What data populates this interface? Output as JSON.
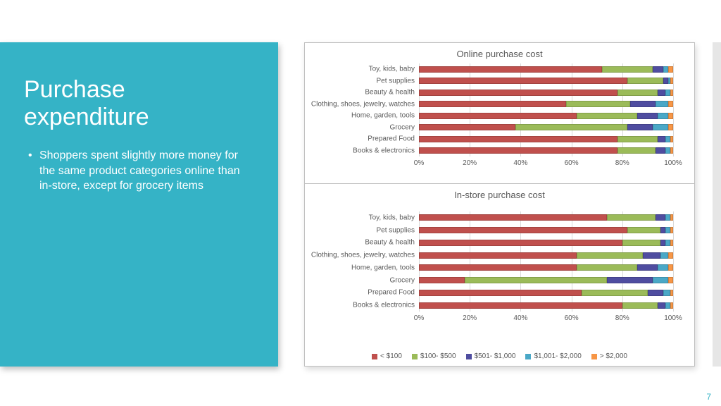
{
  "panel": {
    "title": "Purchase expenditure",
    "bullet": "Shoppers spent slightly more money for the same product categories online than in-store, except for grocery items",
    "bg_color": "#35b3c6"
  },
  "page_number": "7",
  "colors": {
    "series": [
      "#c0504d",
      "#9bbb59",
      "#4f4da0",
      "#4aa8c7",
      "#f79646"
    ],
    "grid": "#d9d9d9",
    "text": "#595959"
  },
  "legend": [
    {
      "label": "< $100"
    },
    {
      "label": "$100- $500"
    },
    {
      "label": "$501- $1,000"
    },
    {
      "label": "$1,001- $2,000"
    },
    {
      "label": "> $2,000"
    }
  ],
  "categories": [
    "Toy, kids, baby",
    "Pet supplies",
    "Beauty & health",
    "Clothing, shoes, jewelry, watches",
    "Home, garden, tools",
    "Grocery",
    "Prepared Food",
    "Books & electronics"
  ],
  "xticks": [
    0,
    20,
    40,
    60,
    80,
    100
  ],
  "charts": {
    "online": {
      "title": "Online purchase cost",
      "type": "stacked-bar-100",
      "data": [
        [
          72,
          20,
          4,
          2,
          2
        ],
        [
          82,
          14,
          2,
          1,
          1
        ],
        [
          78,
          16,
          3,
          2,
          1
        ],
        [
          58,
          25,
          10,
          5,
          2
        ],
        [
          62,
          24,
          8,
          4,
          2
        ],
        [
          38,
          44,
          10,
          6,
          2
        ],
        [
          78,
          16,
          3,
          2,
          1
        ],
        [
          78,
          15,
          4,
          2,
          1
        ]
      ]
    },
    "instore": {
      "title": "In-store purchase cost",
      "type": "stacked-bar-100",
      "data": [
        [
          74,
          19,
          4,
          2,
          1
        ],
        [
          82,
          13,
          2,
          2,
          1
        ],
        [
          80,
          15,
          2,
          2,
          1
        ],
        [
          62,
          26,
          7,
          3,
          2
        ],
        [
          62,
          24,
          8,
          4,
          2
        ],
        [
          18,
          56,
          18,
          6,
          2
        ],
        [
          64,
          26,
          6,
          3,
          1
        ],
        [
          80,
          14,
          3,
          2,
          1
        ]
      ]
    }
  }
}
